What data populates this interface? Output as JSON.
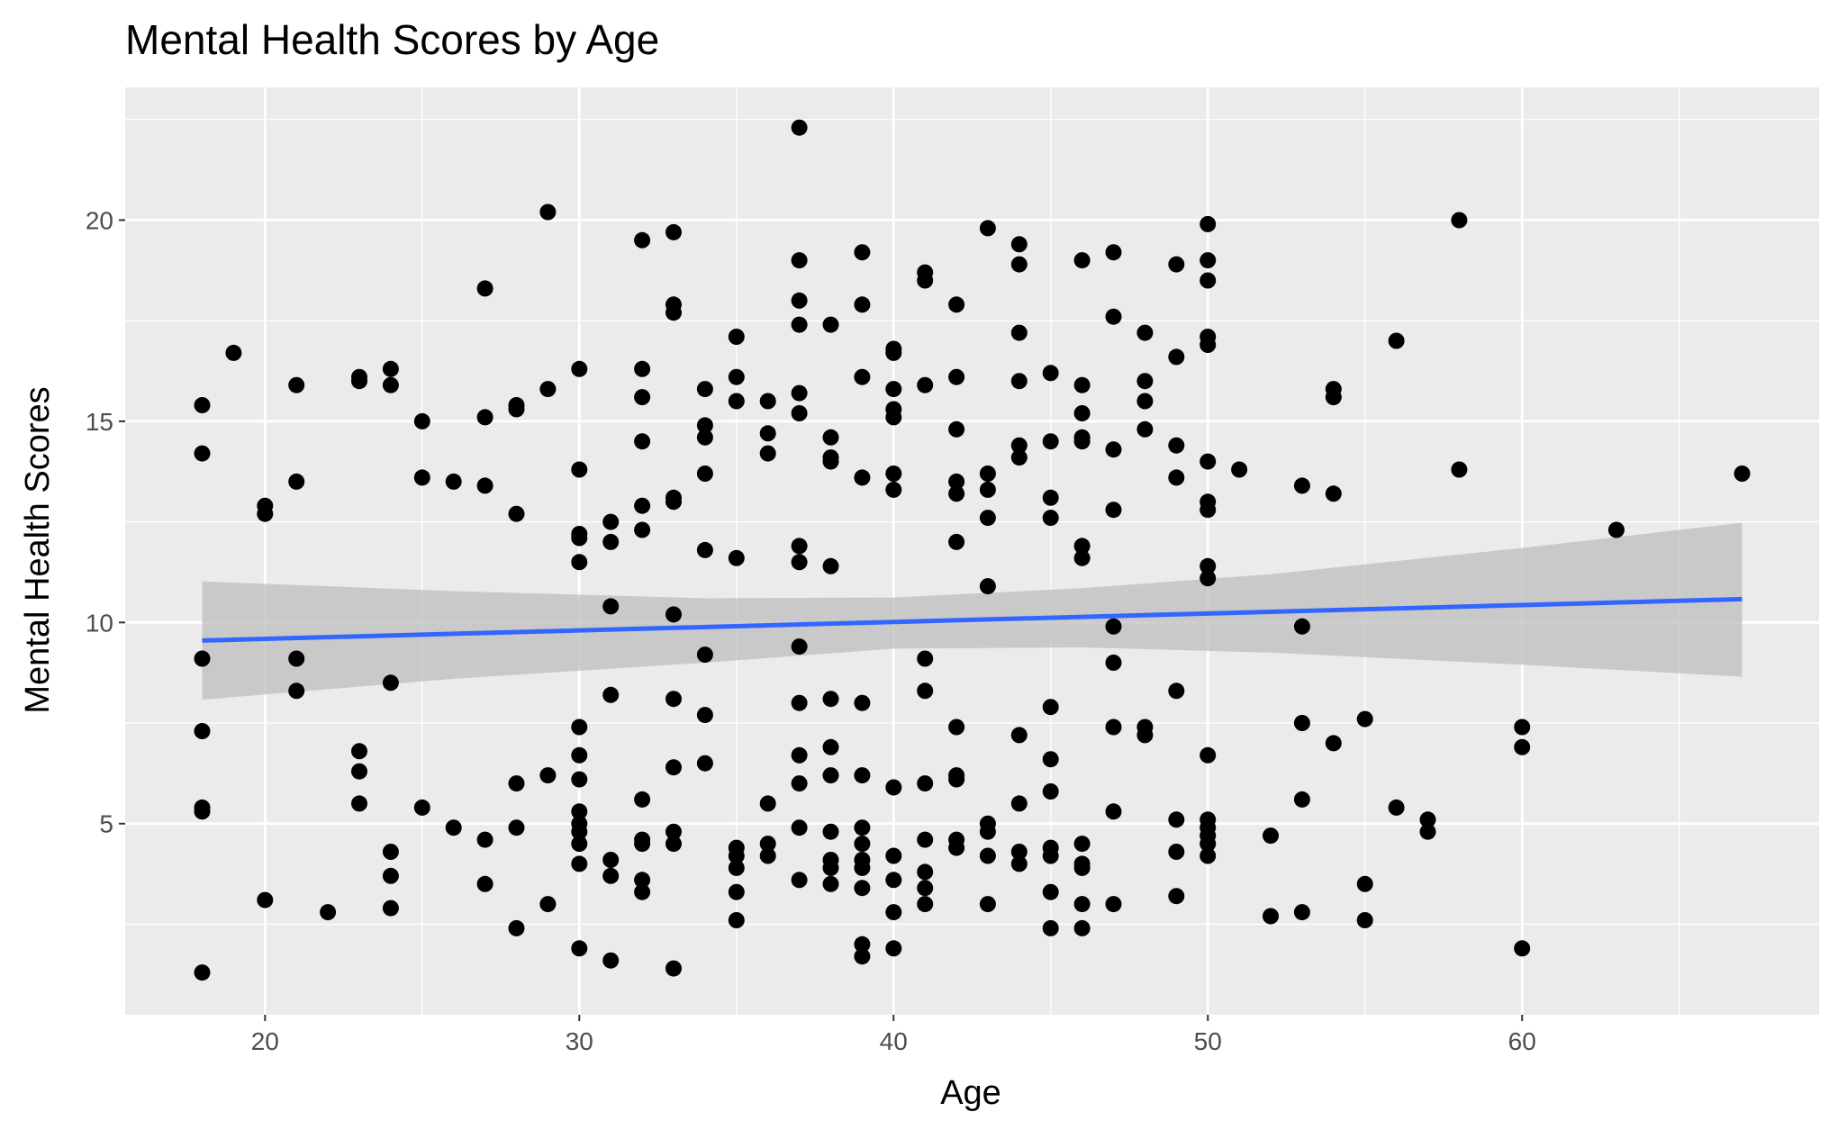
{
  "chart_data": {
    "type": "scatter",
    "title": "Mental Health Scores by Age",
    "xlabel": "Age",
    "ylabel": "Mental Health Scores",
    "xlim": [
      15.55,
      69.45
    ],
    "ylim": [
      0.25,
      23.3
    ],
    "x_ticks": [
      20,
      30,
      40,
      50,
      60
    ],
    "y_ticks": [
      5,
      10,
      15,
      20
    ],
    "x_tick_labels": [
      "20",
      "30",
      "40",
      "50",
      "60"
    ],
    "y_tick_labels": [
      "5",
      "10",
      "15",
      "20"
    ],
    "grid": true,
    "legend": "none",
    "colors": {
      "panel": "#EBEBEB",
      "grid": "#FFFFFF",
      "points": "#000000",
      "trend_line": "#3366FF",
      "confidence_band": "#BDBDBD",
      "tick_text": "#4D4D4D"
    },
    "trend": {
      "method": "linear",
      "x": [
        18,
        67
      ],
      "y": [
        9.55,
        10.58
      ],
      "band": {
        "x": [
          18,
          26,
          34,
          40,
          46,
          52,
          60,
          67
        ],
        "lower": [
          8.08,
          8.6,
          9.0,
          9.35,
          9.38,
          9.25,
          8.95,
          8.65
        ],
        "upper": [
          11.02,
          10.78,
          10.6,
          10.62,
          10.85,
          11.2,
          11.85,
          12.48
        ]
      }
    },
    "points": [
      {
        "x": 18,
        "y": 15.4
      },
      {
        "x": 18,
        "y": 14.2
      },
      {
        "x": 18,
        "y": 9.1
      },
      {
        "x": 18,
        "y": 7.3
      },
      {
        "x": 18,
        "y": 5.4
      },
      {
        "x": 18,
        "y": 5.3
      },
      {
        "x": 18,
        "y": 1.3
      },
      {
        "x": 19,
        "y": 16.7
      },
      {
        "x": 20,
        "y": 12.9
      },
      {
        "x": 20,
        "y": 12.7
      },
      {
        "x": 20,
        "y": 3.1
      },
      {
        "x": 21,
        "y": 15.9
      },
      {
        "x": 21,
        "y": 13.5
      },
      {
        "x": 21,
        "y": 9.1
      },
      {
        "x": 21,
        "y": 8.3
      },
      {
        "x": 22,
        "y": 2.8
      },
      {
        "x": 23,
        "y": 16.1
      },
      {
        "x": 23,
        "y": 16.0
      },
      {
        "x": 23,
        "y": 6.8
      },
      {
        "x": 23,
        "y": 6.3
      },
      {
        "x": 23,
        "y": 5.5
      },
      {
        "x": 24,
        "y": 16.3
      },
      {
        "x": 24,
        "y": 15.9
      },
      {
        "x": 24,
        "y": 8.5
      },
      {
        "x": 24,
        "y": 4.3
      },
      {
        "x": 24,
        "y": 3.7
      },
      {
        "x": 24,
        "y": 2.9
      },
      {
        "x": 25,
        "y": 15.0
      },
      {
        "x": 25,
        "y": 13.6
      },
      {
        "x": 25,
        "y": 5.4
      },
      {
        "x": 26,
        "y": 13.5
      },
      {
        "x": 26,
        "y": 4.9
      },
      {
        "x": 27,
        "y": 18.3
      },
      {
        "x": 27,
        "y": 15.1
      },
      {
        "x": 27,
        "y": 13.4
      },
      {
        "x": 27,
        "y": 4.6
      },
      {
        "x": 27,
        "y": 3.5
      },
      {
        "x": 28,
        "y": 15.4
      },
      {
        "x": 28,
        "y": 15.3
      },
      {
        "x": 28,
        "y": 12.7
      },
      {
        "x": 28,
        "y": 6.0
      },
      {
        "x": 28,
        "y": 4.9
      },
      {
        "x": 28,
        "y": 2.4
      },
      {
        "x": 29,
        "y": 20.2
      },
      {
        "x": 29,
        "y": 15.8
      },
      {
        "x": 29,
        "y": 6.2
      },
      {
        "x": 29,
        "y": 3.0
      },
      {
        "x": 30,
        "y": 16.3
      },
      {
        "x": 30,
        "y": 13.8
      },
      {
        "x": 30,
        "y": 12.2
      },
      {
        "x": 30,
        "y": 12.1
      },
      {
        "x": 30,
        "y": 11.5
      },
      {
        "x": 30,
        "y": 7.4
      },
      {
        "x": 30,
        "y": 6.7
      },
      {
        "x": 30,
        "y": 6.1
      },
      {
        "x": 30,
        "y": 5.3
      },
      {
        "x": 30,
        "y": 5.0
      },
      {
        "x": 30,
        "y": 4.8
      },
      {
        "x": 30,
        "y": 4.5
      },
      {
        "x": 30,
        "y": 4.0
      },
      {
        "x": 30,
        "y": 1.9
      },
      {
        "x": 31,
        "y": 12.5
      },
      {
        "x": 31,
        "y": 12.0
      },
      {
        "x": 31,
        "y": 10.4
      },
      {
        "x": 31,
        "y": 8.2
      },
      {
        "x": 31,
        "y": 4.1
      },
      {
        "x": 31,
        "y": 3.7
      },
      {
        "x": 31,
        "y": 1.6
      },
      {
        "x": 32,
        "y": 19.5
      },
      {
        "x": 32,
        "y": 16.3
      },
      {
        "x": 32,
        "y": 15.6
      },
      {
        "x": 32,
        "y": 14.5
      },
      {
        "x": 32,
        "y": 12.9
      },
      {
        "x": 32,
        "y": 12.3
      },
      {
        "x": 32,
        "y": 5.6
      },
      {
        "x": 32,
        "y": 4.6
      },
      {
        "x": 32,
        "y": 4.5
      },
      {
        "x": 32,
        "y": 3.6
      },
      {
        "x": 32,
        "y": 3.3
      },
      {
        "x": 33,
        "y": 19.7
      },
      {
        "x": 33,
        "y": 17.9
      },
      {
        "x": 33,
        "y": 17.7
      },
      {
        "x": 33,
        "y": 13.1
      },
      {
        "x": 33,
        "y": 13.0
      },
      {
        "x": 33,
        "y": 10.2
      },
      {
        "x": 33,
        "y": 8.1
      },
      {
        "x": 33,
        "y": 6.4
      },
      {
        "x": 33,
        "y": 4.8
      },
      {
        "x": 33,
        "y": 4.5
      },
      {
        "x": 33,
        "y": 1.4
      },
      {
        "x": 34,
        "y": 15.8
      },
      {
        "x": 34,
        "y": 14.9
      },
      {
        "x": 34,
        "y": 14.6
      },
      {
        "x": 34,
        "y": 13.7
      },
      {
        "x": 34,
        "y": 11.8
      },
      {
        "x": 34,
        "y": 9.2
      },
      {
        "x": 34,
        "y": 7.7
      },
      {
        "x": 34,
        "y": 6.5
      },
      {
        "x": 35,
        "y": 17.1
      },
      {
        "x": 35,
        "y": 16.1
      },
      {
        "x": 35,
        "y": 15.5
      },
      {
        "x": 35,
        "y": 11.6
      },
      {
        "x": 35,
        "y": 4.4
      },
      {
        "x": 35,
        "y": 4.2
      },
      {
        "x": 35,
        "y": 3.9
      },
      {
        "x": 35,
        "y": 3.3
      },
      {
        "x": 35,
        "y": 2.6
      },
      {
        "x": 36,
        "y": 15.5
      },
      {
        "x": 36,
        "y": 14.7
      },
      {
        "x": 36,
        "y": 14.2
      },
      {
        "x": 36,
        "y": 5.5
      },
      {
        "x": 36,
        "y": 4.5
      },
      {
        "x": 36,
        "y": 4.2
      },
      {
        "x": 37,
        "y": 22.3
      },
      {
        "x": 37,
        "y": 19.0
      },
      {
        "x": 37,
        "y": 18.0
      },
      {
        "x": 37,
        "y": 17.4
      },
      {
        "x": 37,
        "y": 15.7
      },
      {
        "x": 37,
        "y": 15.2
      },
      {
        "x": 37,
        "y": 11.9
      },
      {
        "x": 37,
        "y": 11.5
      },
      {
        "x": 37,
        "y": 9.4
      },
      {
        "x": 37,
        "y": 8.0
      },
      {
        "x": 37,
        "y": 6.7
      },
      {
        "x": 37,
        "y": 6.0
      },
      {
        "x": 37,
        "y": 4.9
      },
      {
        "x": 37,
        "y": 3.6
      },
      {
        "x": 38,
        "y": 17.4
      },
      {
        "x": 38,
        "y": 14.6
      },
      {
        "x": 38,
        "y": 14.1
      },
      {
        "x": 38,
        "y": 14.0
      },
      {
        "x": 38,
        "y": 11.4
      },
      {
        "x": 38,
        "y": 8.1
      },
      {
        "x": 38,
        "y": 6.9
      },
      {
        "x": 38,
        "y": 6.2
      },
      {
        "x": 38,
        "y": 4.8
      },
      {
        "x": 38,
        "y": 4.1
      },
      {
        "x": 38,
        "y": 3.9
      },
      {
        "x": 38,
        "y": 3.5
      },
      {
        "x": 39,
        "y": 19.2
      },
      {
        "x": 39,
        "y": 17.9
      },
      {
        "x": 39,
        "y": 16.1
      },
      {
        "x": 39,
        "y": 13.6
      },
      {
        "x": 39,
        "y": 8.0
      },
      {
        "x": 39,
        "y": 6.2
      },
      {
        "x": 39,
        "y": 4.9
      },
      {
        "x": 39,
        "y": 4.5
      },
      {
        "x": 39,
        "y": 4.1
      },
      {
        "x": 39,
        "y": 3.9
      },
      {
        "x": 39,
        "y": 3.4
      },
      {
        "x": 39,
        "y": 2.0
      },
      {
        "x": 39,
        "y": 1.7
      },
      {
        "x": 40,
        "y": 16.8
      },
      {
        "x": 40,
        "y": 16.7
      },
      {
        "x": 40,
        "y": 15.8
      },
      {
        "x": 40,
        "y": 15.3
      },
      {
        "x": 40,
        "y": 15.1
      },
      {
        "x": 40,
        "y": 13.7
      },
      {
        "x": 40,
        "y": 13.3
      },
      {
        "x": 40,
        "y": 5.9
      },
      {
        "x": 40,
        "y": 4.2
      },
      {
        "x": 40,
        "y": 3.6
      },
      {
        "x": 40,
        "y": 2.8
      },
      {
        "x": 40,
        "y": 1.9
      },
      {
        "x": 41,
        "y": 18.7
      },
      {
        "x": 41,
        "y": 18.5
      },
      {
        "x": 41,
        "y": 15.9
      },
      {
        "x": 41,
        "y": 9.1
      },
      {
        "x": 41,
        "y": 8.3
      },
      {
        "x": 41,
        "y": 6.0
      },
      {
        "x": 41,
        "y": 4.6
      },
      {
        "x": 41,
        "y": 3.8
      },
      {
        "x": 41,
        "y": 3.4
      },
      {
        "x": 41,
        "y": 3.0
      },
      {
        "x": 42,
        "y": 17.9
      },
      {
        "x": 42,
        "y": 16.1
      },
      {
        "x": 42,
        "y": 14.8
      },
      {
        "x": 42,
        "y": 13.5
      },
      {
        "x": 42,
        "y": 13.2
      },
      {
        "x": 42,
        "y": 12.0
      },
      {
        "x": 42,
        "y": 7.4
      },
      {
        "x": 42,
        "y": 6.2
      },
      {
        "x": 42,
        "y": 6.1
      },
      {
        "x": 42,
        "y": 4.6
      },
      {
        "x": 42,
        "y": 4.4
      },
      {
        "x": 43,
        "y": 19.8
      },
      {
        "x": 43,
        "y": 13.7
      },
      {
        "x": 43,
        "y": 13.3
      },
      {
        "x": 43,
        "y": 12.6
      },
      {
        "x": 43,
        "y": 10.9
      },
      {
        "x": 43,
        "y": 5.0
      },
      {
        "x": 43,
        "y": 4.8
      },
      {
        "x": 43,
        "y": 4.2
      },
      {
        "x": 43,
        "y": 3.0
      },
      {
        "x": 44,
        "y": 19.4
      },
      {
        "x": 44,
        "y": 18.9
      },
      {
        "x": 44,
        "y": 17.2
      },
      {
        "x": 44,
        "y": 16.0
      },
      {
        "x": 44,
        "y": 14.4
      },
      {
        "x": 44,
        "y": 14.1
      },
      {
        "x": 44,
        "y": 7.2
      },
      {
        "x": 44,
        "y": 5.5
      },
      {
        "x": 44,
        "y": 4.3
      },
      {
        "x": 44,
        "y": 4.0
      },
      {
        "x": 45,
        "y": 16.2
      },
      {
        "x": 45,
        "y": 14.5
      },
      {
        "x": 45,
        "y": 13.1
      },
      {
        "x": 45,
        "y": 12.6
      },
      {
        "x": 45,
        "y": 7.9
      },
      {
        "x": 45,
        "y": 6.6
      },
      {
        "x": 45,
        "y": 5.8
      },
      {
        "x": 45,
        "y": 4.4
      },
      {
        "x": 45,
        "y": 4.2
      },
      {
        "x": 45,
        "y": 3.3
      },
      {
        "x": 45,
        "y": 2.4
      },
      {
        "x": 46,
        "y": 19.0
      },
      {
        "x": 46,
        "y": 15.9
      },
      {
        "x": 46,
        "y": 15.2
      },
      {
        "x": 46,
        "y": 14.6
      },
      {
        "x": 46,
        "y": 14.5
      },
      {
        "x": 46,
        "y": 11.9
      },
      {
        "x": 46,
        "y": 11.6
      },
      {
        "x": 46,
        "y": 4.5
      },
      {
        "x": 46,
        "y": 4.0
      },
      {
        "x": 46,
        "y": 3.9
      },
      {
        "x": 46,
        "y": 3.0
      },
      {
        "x": 46,
        "y": 2.4
      },
      {
        "x": 47,
        "y": 19.2
      },
      {
        "x": 47,
        "y": 17.6
      },
      {
        "x": 47,
        "y": 14.3
      },
      {
        "x": 47,
        "y": 12.8
      },
      {
        "x": 47,
        "y": 9.9
      },
      {
        "x": 47,
        "y": 9.0
      },
      {
        "x": 47,
        "y": 7.4
      },
      {
        "x": 47,
        "y": 5.3
      },
      {
        "x": 47,
        "y": 3.0
      },
      {
        "x": 48,
        "y": 17.2
      },
      {
        "x": 48,
        "y": 16.0
      },
      {
        "x": 48,
        "y": 15.5
      },
      {
        "x": 48,
        "y": 14.8
      },
      {
        "x": 48,
        "y": 7.4
      },
      {
        "x": 48,
        "y": 7.2
      },
      {
        "x": 49,
        "y": 18.9
      },
      {
        "x": 49,
        "y": 16.6
      },
      {
        "x": 49,
        "y": 14.4
      },
      {
        "x": 49,
        "y": 13.6
      },
      {
        "x": 49,
        "y": 8.3
      },
      {
        "x": 49,
        "y": 5.1
      },
      {
        "x": 49,
        "y": 4.3
      },
      {
        "x": 49,
        "y": 3.2
      },
      {
        "x": 50,
        "y": 19.9
      },
      {
        "x": 50,
        "y": 19.0
      },
      {
        "x": 50,
        "y": 18.5
      },
      {
        "x": 50,
        "y": 17.1
      },
      {
        "x": 50,
        "y": 16.9
      },
      {
        "x": 50,
        "y": 14.0
      },
      {
        "x": 50,
        "y": 13.0
      },
      {
        "x": 50,
        "y": 12.8
      },
      {
        "x": 50,
        "y": 11.4
      },
      {
        "x": 50,
        "y": 11.1
      },
      {
        "x": 50,
        "y": 6.7
      },
      {
        "x": 50,
        "y": 5.1
      },
      {
        "x": 50,
        "y": 4.9
      },
      {
        "x": 50,
        "y": 4.7
      },
      {
        "x": 50,
        "y": 4.5
      },
      {
        "x": 50,
        "y": 4.2
      },
      {
        "x": 51,
        "y": 13.8
      },
      {
        "x": 52,
        "y": 4.7
      },
      {
        "x": 52,
        "y": 2.7
      },
      {
        "x": 53,
        "y": 13.4
      },
      {
        "x": 53,
        "y": 9.9
      },
      {
        "x": 53,
        "y": 7.5
      },
      {
        "x": 53,
        "y": 5.6
      },
      {
        "x": 53,
        "y": 2.8
      },
      {
        "x": 54,
        "y": 15.8
      },
      {
        "x": 54,
        "y": 15.6
      },
      {
        "x": 54,
        "y": 13.2
      },
      {
        "x": 54,
        "y": 7.0
      },
      {
        "x": 55,
        "y": 7.6
      },
      {
        "x": 55,
        "y": 3.5
      },
      {
        "x": 55,
        "y": 2.6
      },
      {
        "x": 56,
        "y": 17.0
      },
      {
        "x": 56,
        "y": 5.4
      },
      {
        "x": 57,
        "y": 5.1
      },
      {
        "x": 57,
        "y": 4.8
      },
      {
        "x": 58,
        "y": 20.0
      },
      {
        "x": 58,
        "y": 13.8
      },
      {
        "x": 60,
        "y": 7.4
      },
      {
        "x": 60,
        "y": 6.9
      },
      {
        "x": 60,
        "y": 1.9
      },
      {
        "x": 63,
        "y": 12.3
      },
      {
        "x": 67,
        "y": 13.7
      }
    ]
  }
}
